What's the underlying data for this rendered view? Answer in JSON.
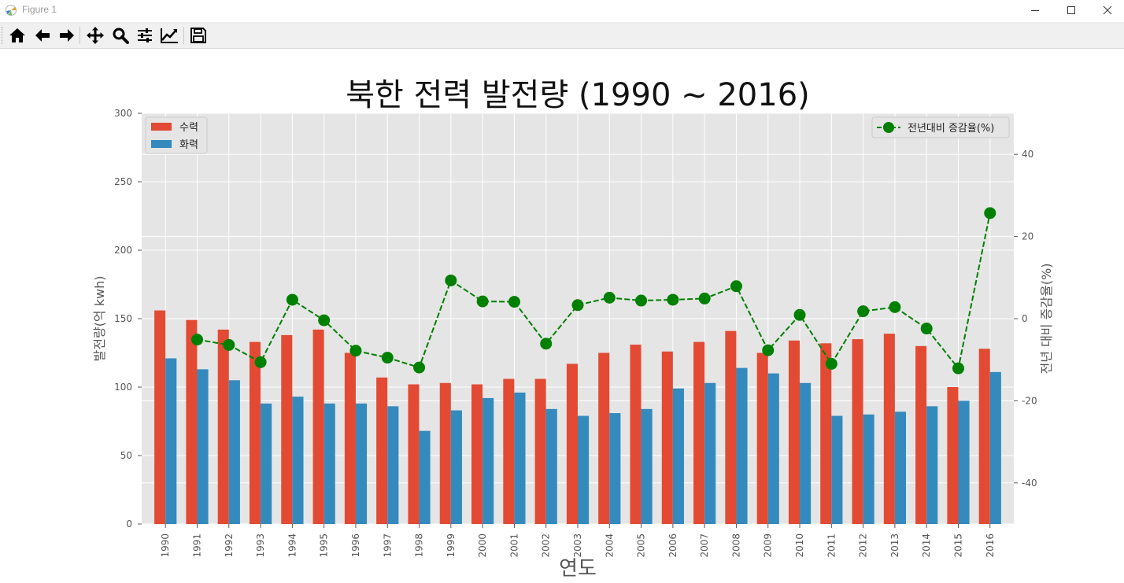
{
  "window": {
    "title": "Figure 1"
  },
  "toolbar": {
    "buttons": [
      {
        "name": "home-icon"
      },
      {
        "name": "back-icon"
      },
      {
        "name": "forward-icon"
      },
      {
        "name": "pan-icon"
      },
      {
        "name": "zoom-icon"
      },
      {
        "name": "configure-subplots-icon"
      },
      {
        "name": "edit-axis-icon"
      },
      {
        "name": "save-icon"
      }
    ]
  },
  "colors": {
    "bar1": "#e24a33",
    "bar2": "#348abd",
    "line": "#008000",
    "axes_bg": "#e5e5e5",
    "grid": "#ffffff"
  },
  "chart_data": {
    "type": "bar+line",
    "title": "북한 전력 발전량 (1990 ~ 2016)",
    "xlabel": "연도",
    "ylabel": "발전량(억 kwh)",
    "y2label": "전년 대비 증감율(%)",
    "categories": [
      "1990",
      "1991",
      "1992",
      "1993",
      "1994",
      "1995",
      "1996",
      "1997",
      "1998",
      "1999",
      "2000",
      "2001",
      "2002",
      "2003",
      "2004",
      "2005",
      "2006",
      "2007",
      "2008",
      "2009",
      "2010",
      "2011",
      "2012",
      "2013",
      "2014",
      "2015",
      "2016"
    ],
    "ylim": [
      0,
      300
    ],
    "yticks": [
      0,
      50,
      100,
      150,
      200,
      250,
      300
    ],
    "y2lim": [
      -50,
      50
    ],
    "y2ticks": [
      -40,
      -20,
      0,
      20,
      40
    ],
    "series": [
      {
        "name": "수력",
        "type": "bar",
        "values": [
          156,
          149,
          142,
          133,
          138,
          142,
          125,
          107,
          102,
          103,
          102,
          106,
          106,
          117,
          125,
          131,
          126,
          133,
          141,
          125,
          134,
          132,
          135,
          139,
          130,
          100,
          128
        ]
      },
      {
        "name": "화력",
        "type": "bar",
        "values": [
          121,
          113,
          105,
          88,
          93,
          88,
          88,
          86,
          68,
          83,
          92,
          96,
          84,
          79,
          81,
          84,
          99,
          103,
          114,
          110,
          103,
          79,
          80,
          82,
          86,
          90,
          111
        ]
      },
      {
        "name": "전년대비 증감율(%)",
        "type": "line",
        "values": [
          null,
          -5.1,
          -6.4,
          -10.6,
          4.6,
          -0.4,
          -7.8,
          -9.5,
          -11.9,
          9.3,
          4.2,
          4.1,
          -6.1,
          3.3,
          5.1,
          4.4,
          4.6,
          4.9,
          7.9,
          -7.7,
          0.9,
          -11.0,
          1.8,
          2.8,
          -2.4,
          -12.1,
          25.7
        ]
      }
    ],
    "legend_left_position": "upper left",
    "legend_right_position": "upper right",
    "grid": true
  }
}
